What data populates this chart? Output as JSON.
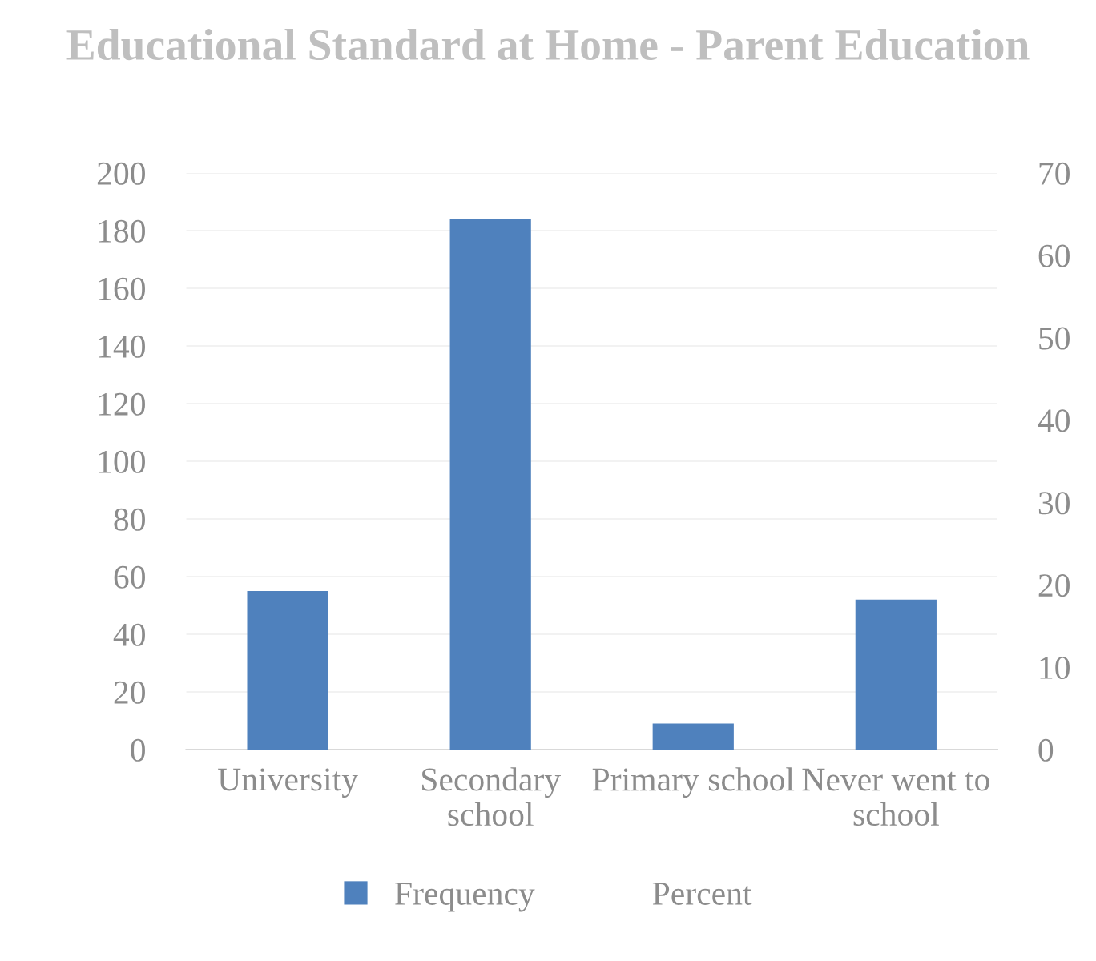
{
  "chart_data": {
    "type": "bar",
    "title": "Educational Standard at Home - Parent Education",
    "categories": [
      "University",
      "Secondary school",
      "Primary school",
      "Never went to school"
    ],
    "series": [
      {
        "name": "Frequency",
        "color": "#4f81bd",
        "values": [
          55,
          184,
          9,
          52
        ]
      },
      {
        "name": "Percent",
        "values": [
          null,
          null,
          null,
          null
        ]
      }
    ],
    "ylim": [
      0,
      200
    ],
    "yticks": [
      0,
      20,
      40,
      60,
      80,
      100,
      120,
      140,
      160,
      180,
      200
    ],
    "y2lim": [
      0,
      70
    ],
    "y2ticks": [
      0,
      10,
      20,
      30,
      40,
      50,
      60,
      70
    ],
    "grid": "y",
    "legend": "bottom"
  }
}
